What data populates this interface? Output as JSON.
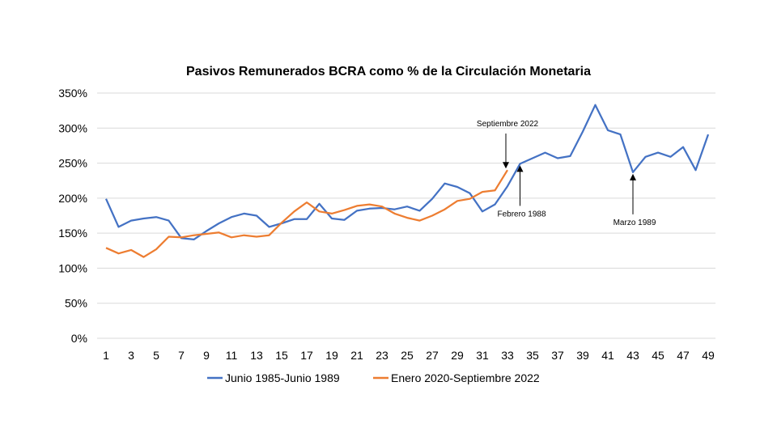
{
  "chart_data": {
    "type": "line",
    "title": "Pasivos Remunerados BCRA como % de la Circulación Monetaria",
    "xlabel": "",
    "ylabel": "",
    "ylim": [
      0,
      350
    ],
    "y_ticks": [
      "0%",
      "50%",
      "100%",
      "150%",
      "200%",
      "250%",
      "300%",
      "350%"
    ],
    "x_ticks": [
      "1",
      "3",
      "5",
      "7",
      "9",
      "11",
      "13",
      "15",
      "17",
      "19",
      "21",
      "23",
      "25",
      "27",
      "29",
      "31",
      "33",
      "35",
      "37",
      "39",
      "41",
      "43",
      "45",
      "47",
      "49"
    ],
    "grid": true,
    "legend_position": "bottom",
    "series": [
      {
        "name": "Junio 1985-Junio 1989",
        "color": "#4472C4",
        "x": [
          1,
          2,
          3,
          4,
          5,
          6,
          7,
          8,
          9,
          10,
          11,
          12,
          13,
          14,
          15,
          16,
          17,
          18,
          19,
          20,
          21,
          22,
          23,
          24,
          25,
          26,
          27,
          28,
          29,
          30,
          31,
          32,
          33,
          34,
          35,
          36,
          37,
          38,
          39,
          40,
          41,
          42,
          43,
          44,
          45,
          46,
          47,
          48,
          49
        ],
        "values": [
          199,
          159,
          168,
          171,
          173,
          168,
          143,
          141,
          153,
          164,
          173,
          178,
          175,
          159,
          164,
          170,
          170,
          192,
          171,
          169,
          182,
          185,
          186,
          184,
          188,
          182,
          199,
          221,
          216,
          207,
          181,
          191,
          217,
          249,
          257,
          265,
          257,
          260,
          295,
          333,
          297,
          291,
          237,
          259,
          265,
          259,
          273,
          240,
          291
        ]
      },
      {
        "name": "Enero 2020-Septiembre 2022",
        "color": "#ED7D31",
        "x": [
          1,
          2,
          3,
          4,
          5,
          6,
          7,
          8,
          9,
          10,
          11,
          12,
          13,
          14,
          15,
          16,
          17,
          18,
          19,
          20,
          21,
          22,
          23,
          24,
          25,
          26,
          27,
          28,
          29,
          30,
          31,
          32,
          33
        ],
        "values": [
          129,
          121,
          126,
          116,
          127,
          145,
          144,
          147,
          149,
          151,
          144,
          147,
          145,
          147,
          165,
          181,
          194,
          181,
          178,
          183,
          189,
          191,
          188,
          178,
          172,
          168,
          175,
          184,
          196,
          199,
          209,
          211,
          240
        ]
      }
    ],
    "annotations": [
      {
        "text": "Septiembre 2022",
        "x": 33,
        "y": 240,
        "arrow": "down"
      },
      {
        "text": "Febrero 1988",
        "x": 34,
        "y": 249,
        "arrow": "up"
      },
      {
        "text": "Marzo 1989",
        "x": 43,
        "y": 237,
        "arrow": "up"
      }
    ]
  }
}
